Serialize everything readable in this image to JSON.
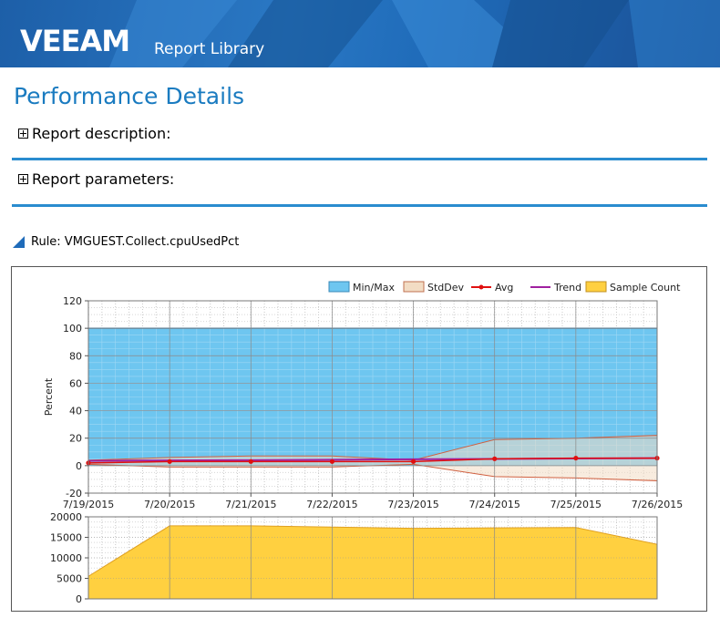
{
  "header": {
    "logo_text": "VEEAM",
    "app_title": "Report Library"
  },
  "page": {
    "title": "Performance Details"
  },
  "sections": [
    {
      "label": "Report description:"
    },
    {
      "label": "Report parameters:"
    }
  ],
  "rule": {
    "label": "Rule: VMGUEST.Collect.cpuUsedPct"
  },
  "chart_data": [
    {
      "type": "area",
      "ylabel": "Percent",
      "ylim": [
        -20,
        120
      ],
      "yticks": [
        -20,
        0,
        20,
        40,
        60,
        80,
        100,
        120
      ],
      "x": [
        "7/19/2015",
        "7/20/2015",
        "7/21/2015",
        "7/22/2015",
        "7/23/2015",
        "7/24/2015",
        "7/25/2015",
        "7/26/2015"
      ],
      "grid": true,
      "legend_position": "top-right",
      "legend": [
        "Min/Max",
        "StdDev",
        "Avg",
        "Trend",
        "Sample Count"
      ],
      "colors": {
        "minmax": "#6ec6f0",
        "stddev": "#f2dcc4",
        "avg": "#e01010",
        "trend": "#a020a0",
        "sample": "#ffd040"
      },
      "series": [
        {
          "name": "Min/Max",
          "min": [
            0,
            0,
            0,
            0,
            0,
            0,
            0,
            0
          ],
          "max": [
            100,
            100,
            100,
            100,
            100,
            100,
            100,
            100
          ]
        },
        {
          "name": "StdDev",
          "lower": [
            1,
            -1,
            -1,
            -1,
            1,
            -8,
            -9,
            -11
          ],
          "upper": [
            4,
            6,
            7,
            7,
            4,
            19,
            20,
            22
          ]
        },
        {
          "name": "Avg",
          "values": [
            2,
            3,
            3,
            3,
            3,
            5,
            5.5,
            5.5
          ]
        },
        {
          "name": "Trend",
          "values": [
            3.5,
            3.8,
            4.0,
            4.3,
            4.6,
            4.9,
            5.2,
            5.5
          ]
        }
      ]
    },
    {
      "type": "area",
      "ylim": [
        0,
        20000
      ],
      "yticks": [
        0,
        5000,
        10000,
        15000,
        20000
      ],
      "x": [
        "7/19/2015",
        "7/20/2015",
        "7/21/2015",
        "7/22/2015",
        "7/23/2015",
        "7/24/2015",
        "7/25/2015",
        "7/26/2015"
      ],
      "series": [
        {
          "name": "Sample Count",
          "values": [
            5500,
            17800,
            17800,
            17500,
            17200,
            17300,
            17400,
            13300
          ]
        }
      ]
    }
  ]
}
